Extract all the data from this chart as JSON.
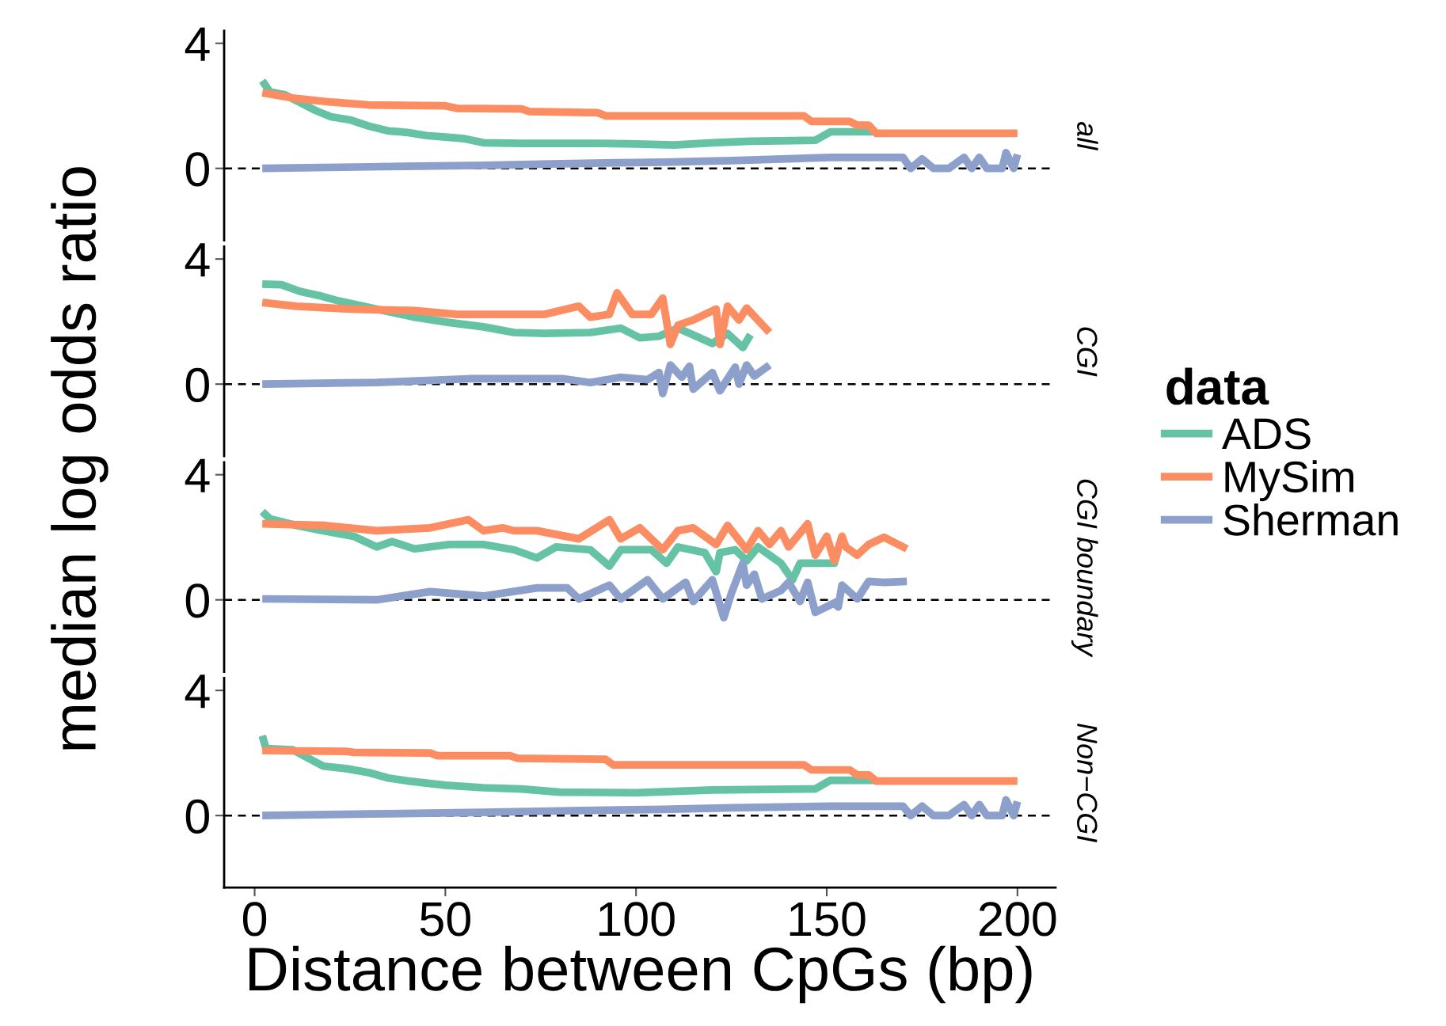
{
  "chart_data": [
    {
      "type": "line",
      "annotations": [
        "all"
      ],
      "ylabel": "median log odds ratio",
      "xlim": [
        -8,
        210
      ],
      "ylim": [
        -2.3,
        4.4
      ],
      "yticks": [
        0,
        4
      ],
      "tick_labels": "y",
      "grid": false,
      "line_style": "solid",
      "marker": "none",
      "ref_lines": [
        {
          "axis": "y",
          "value": 0,
          "color": "#000000",
          "line_style": "dashed"
        }
      ],
      "series": [
        {
          "color": "#66c2a5",
          "x": [
            2,
            4,
            8,
            12,
            16,
            20,
            25,
            30,
            35,
            40,
            45,
            50,
            55,
            60,
            70,
            80,
            90,
            100,
            110,
            120,
            130,
            147,
            151,
            163
          ],
          "values": [
            2.8,
            2.45,
            2.35,
            2.1,
            1.85,
            1.65,
            1.55,
            1.35,
            1.2,
            1.15,
            1.05,
            1.0,
            0.95,
            0.82,
            0.8,
            0.8,
            0.8,
            0.78,
            0.75,
            0.82,
            0.87,
            0.9,
            1.17,
            1.17
          ]
        },
        {
          "color": "#fc8d62",
          "x": [
            2,
            10,
            20,
            30,
            50,
            53,
            70,
            72,
            90,
            92,
            144,
            146,
            156,
            158,
            161,
            163,
            200
          ],
          "values": [
            2.42,
            2.25,
            2.12,
            2.03,
            2.0,
            1.92,
            1.9,
            1.82,
            1.78,
            1.68,
            1.68,
            1.5,
            1.5,
            1.38,
            1.38,
            1.12,
            1.12
          ]
        },
        {
          "color": "#8da0cb",
          "x": [
            2,
            30,
            60,
            80,
            107,
            125,
            151,
            160,
            170,
            172,
            175,
            178,
            182,
            186,
            188,
            190,
            192,
            196,
            197,
            199,
            200
          ],
          "values": [
            0.0,
            0.05,
            0.1,
            0.15,
            0.2,
            0.25,
            0.35,
            0.35,
            0.35,
            0.0,
            0.3,
            0.0,
            0.0,
            0.35,
            0.0,
            0.35,
            0.0,
            0.0,
            0.5,
            0.0,
            0.45
          ]
        }
      ]
    },
    {
      "type": "line",
      "annotations": [
        "CGI"
      ],
      "xlim": [
        -8,
        210
      ],
      "ylim": [
        -2.3,
        4.4
      ],
      "yticks": [
        0,
        4
      ],
      "tick_labels": "y",
      "grid": false,
      "line_style": "solid",
      "marker": "none",
      "legend": "right",
      "legend_title": "data",
      "ref_lines": [
        {
          "axis": "y",
          "value": 0,
          "color": "#000000",
          "line_style": "dashed"
        }
      ],
      "series": [
        {
          "name": "ADS",
          "color": "#66c2a5",
          "x": [
            2,
            7,
            12,
            17,
            22,
            32,
            42,
            51,
            60,
            68,
            76,
            88,
            96,
            101,
            106,
            111,
            120,
            124,
            128,
            130
          ],
          "values": [
            3.2,
            3.18,
            2.96,
            2.83,
            2.66,
            2.4,
            2.14,
            1.97,
            1.83,
            1.65,
            1.62,
            1.65,
            1.79,
            1.48,
            1.53,
            1.79,
            1.3,
            1.62,
            1.17,
            1.58
          ]
        },
        {
          "name": "MySim",
          "color": "#fc8d62",
          "x": [
            2,
            11,
            25,
            42,
            53,
            68,
            76,
            85,
            88,
            93,
            95,
            99,
            104,
            107,
            109,
            111,
            115,
            121,
            122,
            124,
            127,
            129,
            135
          ],
          "values": [
            2.61,
            2.49,
            2.4,
            2.35,
            2.23,
            2.23,
            2.23,
            2.49,
            2.14,
            2.23,
            2.92,
            2.23,
            2.23,
            2.75,
            1.27,
            1.88,
            2.05,
            2.4,
            1.27,
            2.49,
            2.05,
            2.43,
            1.65
          ]
        },
        {
          "name": "Sherman",
          "color": "#8da0cb",
          "x": [
            2,
            32,
            56,
            68,
            81,
            88,
            96,
            103,
            106,
            107,
            109,
            112,
            114,
            115,
            120,
            122,
            126,
            127,
            129,
            131,
            135
          ],
          "values": [
            0.0,
            0.05,
            0.17,
            0.17,
            0.17,
            0.05,
            0.22,
            0.14,
            0.37,
            -0.3,
            0.61,
            0.22,
            0.57,
            -0.16,
            0.37,
            -0.21,
            0.54,
            0.0,
            0.61,
            0.26,
            0.61
          ]
        }
      ]
    },
    {
      "type": "line",
      "annotations": [
        "CGI boundary"
      ],
      "xlim": [
        -8,
        210
      ],
      "ylim": [
        -2.3,
        4.4
      ],
      "yticks": [
        0,
        4
      ],
      "tick_labels": "y",
      "grid": false,
      "line_style": "solid",
      "marker": "none",
      "ref_lines": [
        {
          "axis": "y",
          "value": 0,
          "color": "#000000",
          "line_style": "dashed"
        }
      ],
      "series": [
        {
          "color": "#66c2a5",
          "x": [
            2,
            4,
            11,
            18,
            26,
            32,
            36,
            42,
            51,
            60,
            68,
            74,
            79,
            88,
            93,
            96,
            104,
            108,
            111,
            118,
            121,
            122,
            126,
            129,
            132,
            138,
            141,
            143,
            152,
            153
          ],
          "values": [
            2.82,
            2.59,
            2.38,
            2.21,
            2.03,
            1.69,
            1.86,
            1.63,
            1.77,
            1.77,
            1.6,
            1.34,
            1.69,
            1.6,
            1.08,
            1.6,
            1.6,
            1.17,
            1.69,
            1.51,
            0.9,
            1.51,
            1.6,
            1.25,
            1.69,
            1.17,
            0.64,
            1.17,
            1.17,
            1.6
          ]
        },
        {
          "color": "#fc8d62",
          "x": [
            2,
            18,
            32,
            46,
            56,
            60,
            65,
            68,
            74,
            85,
            93,
            96,
            101,
            107,
            111,
            115,
            121,
            124,
            129,
            132,
            135,
            138,
            140,
            145,
            147,
            150,
            152,
            154,
            155,
            158,
            161,
            165,
            171
          ],
          "values": [
            2.43,
            2.38,
            2.21,
            2.3,
            2.56,
            2.21,
            2.3,
            2.21,
            2.21,
            1.95,
            2.56,
            1.95,
            2.3,
            1.6,
            2.21,
            2.3,
            1.77,
            2.38,
            1.6,
            2.21,
            1.77,
            2.21,
            1.69,
            2.43,
            1.43,
            2.03,
            1.25,
            2.03,
            1.69,
            1.43,
            1.77,
            2.0,
            1.63
          ]
        },
        {
          "color": "#8da0cb",
          "x": [
            2,
            32,
            46,
            60,
            74,
            82,
            85,
            93,
            96,
            103,
            107,
            113,
            115,
            120,
            123,
            125,
            128,
            129,
            131,
            133,
            138,
            140,
            143,
            145,
            147,
            152,
            153,
            154,
            158,
            161,
            165,
            171
          ],
          "values": [
            0.03,
            0.0,
            0.26,
            0.12,
            0.38,
            0.38,
            0.03,
            0.47,
            0.03,
            0.64,
            0.03,
            0.56,
            -0.05,
            0.64,
            -0.57,
            0.21,
            1.17,
            0.47,
            0.82,
            0.03,
            0.3,
            0.56,
            -0.05,
            0.56,
            -0.4,
            -0.1,
            -0.23,
            0.47,
            0.03,
            0.59,
            0.56,
            0.59
          ]
        }
      ]
    },
    {
      "type": "line",
      "annotations": [
        "Non−CGI"
      ],
      "xlabel": "Distance between CpGs (bp)",
      "xlim": [
        -8,
        210
      ],
      "xticks": [
        0,
        50,
        100,
        150,
        200
      ],
      "ylim": [
        -2.3,
        4.4
      ],
      "yticks": [
        0,
        4
      ],
      "grid": false,
      "line_style": "solid",
      "marker": "none",
      "ref_lines": [
        {
          "axis": "y",
          "value": 0,
          "color": "#000000",
          "line_style": "dashed"
        }
      ],
      "series": [
        {
          "color": "#66c2a5",
          "x": [
            2,
            3,
            10,
            14,
            18,
            24,
            30,
            35,
            40,
            50,
            60,
            70,
            80,
            100,
            120,
            147,
            151,
            163
          ],
          "values": [
            2.55,
            2.14,
            2.1,
            1.84,
            1.58,
            1.5,
            1.37,
            1.2,
            1.11,
            0.97,
            0.89,
            0.85,
            0.75,
            0.73,
            0.82,
            0.85,
            1.13,
            1.13
          ]
        },
        {
          "color": "#fc8d62",
          "x": [
            2,
            24,
            26,
            46,
            48,
            67,
            69,
            92,
            94,
            144,
            146,
            156,
            158,
            161,
            163,
            200
          ],
          "values": [
            2.08,
            2.05,
            2.02,
            2.0,
            1.91,
            1.91,
            1.83,
            1.8,
            1.62,
            1.62,
            1.46,
            1.46,
            1.3,
            1.3,
            1.1,
            1.1
          ]
        },
        {
          "color": "#8da0cb",
          "x": [
            2,
            30,
            60,
            80,
            107,
            125,
            151,
            160,
            170,
            172,
            175,
            178,
            182,
            186,
            188,
            190,
            192,
            196,
            197,
            199,
            200
          ],
          "values": [
            0.0,
            0.05,
            0.1,
            0.15,
            0.2,
            0.25,
            0.3,
            0.3,
            0.3,
            0.0,
            0.3,
            0.0,
            0.0,
            0.35,
            0.0,
            0.35,
            0.0,
            0.0,
            0.5,
            0.0,
            0.45
          ]
        }
      ]
    }
  ]
}
